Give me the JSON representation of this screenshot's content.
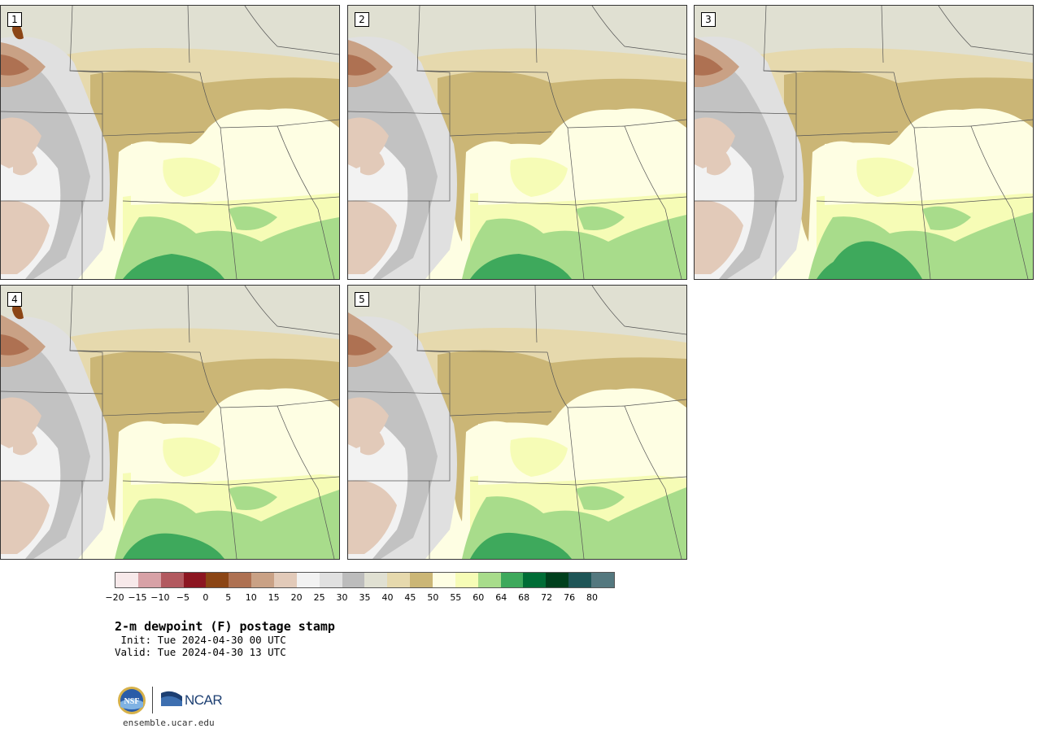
{
  "panels": [
    {
      "label": "1",
      "variant": 0
    },
    {
      "label": "2",
      "variant": 1
    },
    {
      "label": "3",
      "variant": 2
    },
    {
      "label": "4",
      "variant": 3
    },
    {
      "label": "5",
      "variant": 4
    }
  ],
  "colorbar": {
    "colors": [
      "#f7e9ea",
      "#d7a1a6",
      "#b2595f",
      "#8c1621",
      "#8b4515",
      "#ae7152",
      "#c9a185",
      "#e2cab9",
      "#f2f2f2",
      "#e0e0e0",
      "#bcbcbc",
      "#e0e0d2",
      "#e6d9ad",
      "#cbb676",
      "#fefee3",
      "#f6fcb6",
      "#a8dc8b",
      "#3ea95c",
      "#006d36",
      "#00401d",
      "#1e5557",
      "#54787f"
    ],
    "ticks": [
      "−20",
      "−15",
      "−10",
      "−5",
      "0",
      "5",
      "10",
      "15",
      "20",
      "25",
      "30",
      "35",
      "40",
      "45",
      "50",
      "55",
      "60",
      "64",
      "68",
      "72",
      "76",
      "80"
    ]
  },
  "title": "2-m dewpoint (F) postage stamp",
  "init": " Init: Tue 2024-04-30 00 UTC",
  "valid": "Valid: Tue 2024-04-30 13 UTC",
  "website": "ensemble.ucar.edu",
  "logos": {
    "ncar": "NCAR",
    "nsf": "NSF"
  }
}
